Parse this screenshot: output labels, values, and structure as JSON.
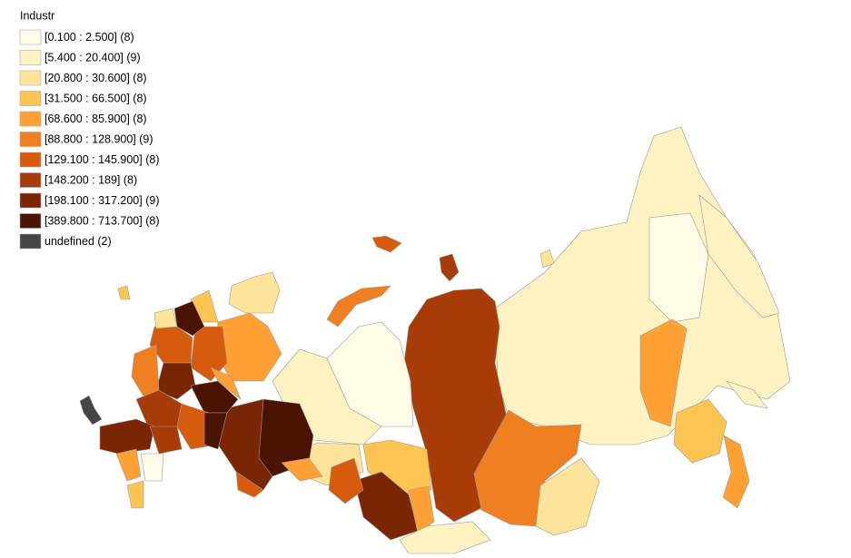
{
  "legend": {
    "title": "Industr",
    "items": [
      {
        "label": "[0.100 : 2.500] (8)",
        "color": "#fffbe6"
      },
      {
        "label": "[5.400 : 20.400] (9)",
        "color": "#fff2c2"
      },
      {
        "label": "[20.800 : 30.600] (8)",
        "color": "#fee39a"
      },
      {
        "label": "[31.500 : 66.500] (8)",
        "color": "#fec452"
      },
      {
        "label": "[68.600 : 85.900] (8)",
        "color": "#fea033"
      },
      {
        "label": "[88.800 : 128.900] (9)",
        "color": "#f07f22"
      },
      {
        "label": "[129.100 : 145.900] (8)",
        "color": "#d65b0c"
      },
      {
        "label": "[148.200 : 189] (8)",
        "color": "#a83c08"
      },
      {
        "label": "[198.100 : 317.200] (9)",
        "color": "#7a2504"
      },
      {
        "label": "[389.800 : 713.700] (8)",
        "color": "#4b1402"
      },
      {
        "label": "undefined (2)",
        "color": "#454545"
      }
    ]
  }
}
